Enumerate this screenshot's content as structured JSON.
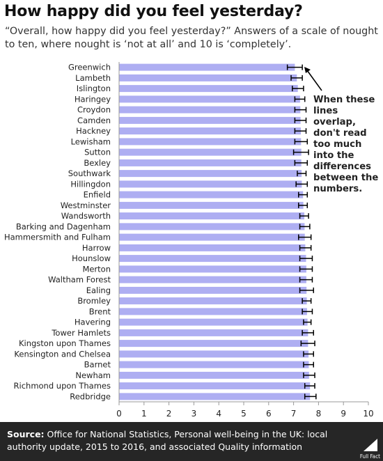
{
  "header": {
    "title": "How happy did you feel yesterday?",
    "subtitle": "“Overall, how happy did you feel yesterday?” Answers of a scale of nought to ten, where nought is ‘not at all’ and 10 is ‘completely’."
  },
  "annotation": "When these lines overlap, don't read too much into the differences between the numbers.",
  "footer": {
    "source_label": "Source:",
    "source_text": "Office for National Statistics, Personal well-being in the UK: local authority update, 2015 to 2016, and associated Quality information",
    "logo_text": "Full Fact"
  },
  "colors": {
    "bar": "#aeaef2",
    "error_bar": "#000000",
    "axis": "#999999",
    "footer_bg": "#262626"
  },
  "chart_data": {
    "type": "bar",
    "orientation": "horizontal",
    "xlim": [
      0,
      10
    ],
    "xticks": [
      0,
      1,
      2,
      3,
      4,
      5,
      6,
      7,
      8,
      9,
      10
    ],
    "grid": false,
    "categories": [
      "Greenwich",
      "Lambeth",
      "Islington",
      "Haringey",
      "Croydon",
      "Camden",
      "Hackney",
      "Lewisham",
      "Sutton",
      "Bexley",
      "Southwark",
      "Hillingdon",
      "Enfield",
      "Westminster",
      "Wandsworth",
      "Barking and Dagenham",
      "Hammersmith and Fulham",
      "Harrow",
      "Hounslow",
      "Merton",
      "Waltham Forest",
      "Ealing",
      "Bromley",
      "Brent",
      "Havering",
      "Tower Hamlets",
      "Kingston upon Thames",
      "Kensington and Chelsea",
      "Barnet",
      "Newham",
      "Richmond upon Thames",
      "Redbridge"
    ],
    "values": [
      7.05,
      7.13,
      7.17,
      7.26,
      7.27,
      7.28,
      7.29,
      7.3,
      7.31,
      7.31,
      7.32,
      7.33,
      7.38,
      7.39,
      7.43,
      7.44,
      7.45,
      7.47,
      7.5,
      7.51,
      7.51,
      7.52,
      7.53,
      7.54,
      7.56,
      7.58,
      7.58,
      7.6,
      7.61,
      7.62,
      7.66,
      7.66
    ],
    "error_low": [
      6.75,
      6.9,
      6.95,
      7.05,
      7.05,
      7.05,
      7.05,
      7.05,
      7.0,
      7.05,
      7.15,
      7.1,
      7.2,
      7.2,
      7.25,
      7.25,
      7.2,
      7.25,
      7.25,
      7.25,
      7.25,
      7.25,
      7.35,
      7.35,
      7.4,
      7.35,
      7.3,
      7.4,
      7.4,
      7.4,
      7.45,
      7.45
    ],
    "error_high": [
      7.35,
      7.35,
      7.4,
      7.45,
      7.5,
      7.5,
      7.5,
      7.55,
      7.6,
      7.55,
      7.5,
      7.55,
      7.55,
      7.55,
      7.6,
      7.65,
      7.7,
      7.7,
      7.75,
      7.75,
      7.75,
      7.8,
      7.7,
      7.75,
      7.7,
      7.8,
      7.85,
      7.8,
      7.8,
      7.85,
      7.85,
      7.9
    ]
  }
}
